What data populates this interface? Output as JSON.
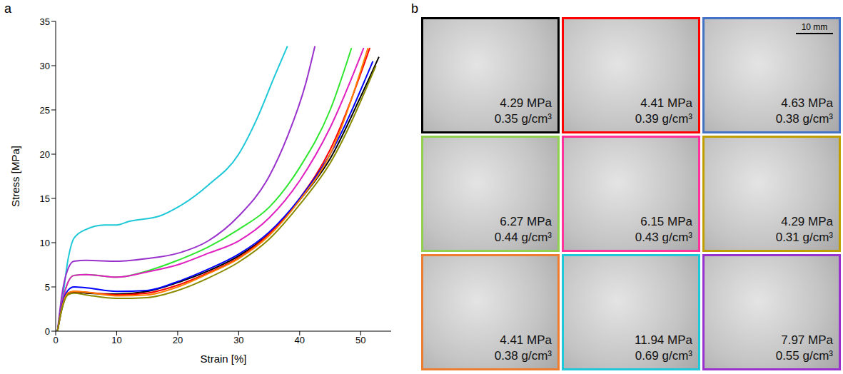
{
  "panel_labels": [
    "a",
    "b"
  ],
  "chart_data": {
    "type": "line",
    "x_label": "Strain [%]",
    "y_label": "Stress [MPa]",
    "xlim": [
      0,
      55
    ],
    "xticks": [
      0,
      10,
      20,
      30,
      40,
      50
    ],
    "ylim": [
      0,
      35
    ],
    "yticks": [
      0,
      5,
      10,
      15,
      20,
      25,
      30,
      35
    ],
    "grid": false,
    "series": [
      {
        "color": "#1fc8d8",
        "x": [
          0.3,
          1,
          2,
          3,
          5,
          8,
          10,
          12,
          17,
          20,
          25,
          30,
          33,
          36,
          38
        ],
        "values": [
          0,
          3,
          8,
          10.5,
          11.5,
          12,
          12,
          12.4,
          13,
          14,
          16.5,
          20,
          24,
          29,
          32.2
        ]
      },
      {
        "color": "#9932cc",
        "x": [
          0.3,
          1,
          2,
          3,
          5,
          10,
          15,
          20,
          25,
          30,
          35,
          38,
          41,
          42.5
        ],
        "values": [
          0,
          4,
          7,
          7.9,
          8,
          7.9,
          8.2,
          8.8,
          10.2,
          13,
          17.5,
          22,
          28,
          32.2
        ]
      },
      {
        "color": "#2ee62e",
        "x": [
          0.3,
          1,
          2,
          3,
          5,
          10,
          15,
          20,
          25,
          30,
          35,
          40,
          45,
          48.5
        ],
        "values": [
          0,
          3,
          5.5,
          6.3,
          6.4,
          6.1,
          6.8,
          8,
          9.5,
          11.5,
          14,
          18.5,
          25,
          32
        ]
      },
      {
        "color": "#e020c0",
        "x": [
          0.3,
          1,
          2,
          3,
          5,
          10,
          15,
          20,
          25,
          30,
          35,
          40,
          45,
          50.5
        ],
        "values": [
          0,
          3,
          5.5,
          6.3,
          6.4,
          6.1,
          6.7,
          7.5,
          8.8,
          10.2,
          12.8,
          17,
          23,
          32
        ]
      },
      {
        "color": "#000000",
        "x": [
          0.3,
          1,
          2,
          3,
          5,
          10,
          15,
          20,
          25,
          30,
          35,
          40,
          45,
          50,
          53
        ],
        "values": [
          0,
          2.5,
          4.2,
          4.4,
          4.3,
          4.2,
          4.5,
          5.5,
          6.8,
          8.5,
          11,
          14.8,
          19.5,
          26.5,
          31
        ]
      },
      {
        "color": "#ff0000",
        "x": [
          0.3,
          1,
          2,
          3,
          5,
          10,
          15,
          20,
          25,
          30,
          35,
          40,
          45,
          51.5
        ],
        "values": [
          0,
          2.6,
          4.3,
          4.5,
          4.4,
          4.1,
          4.3,
          5.2,
          6.6,
          8.3,
          11,
          15,
          20.5,
          32
        ]
      },
      {
        "color": "#0000ff",
        "x": [
          0.3,
          1,
          2,
          3,
          5,
          10,
          15,
          20,
          25,
          30,
          35,
          40,
          45,
          52
        ],
        "values": [
          0,
          2.8,
          4.6,
          5,
          4.9,
          4.5,
          4.6,
          5.6,
          7,
          8.7,
          11.2,
          15,
          20,
          30.5
        ]
      },
      {
        "color": "#ff7f00",
        "x": [
          0.3,
          1,
          2,
          3,
          5,
          10,
          15,
          20,
          25,
          30,
          35,
          40,
          45,
          51.2
        ],
        "values": [
          0,
          2.6,
          4.3,
          4.5,
          4.4,
          4,
          4.1,
          5,
          6.5,
          8.2,
          10.8,
          14.8,
          20,
          32
        ]
      },
      {
        "color": "#8b8b00",
        "x": [
          0.3,
          1,
          2,
          3,
          5,
          10,
          15,
          20,
          25,
          30,
          35,
          40,
          45,
          52.5
        ],
        "values": [
          0,
          2.4,
          4.1,
          4.3,
          4.1,
          3.7,
          3.8,
          4.6,
          6,
          7.8,
          10.4,
          14.3,
          19,
          30
        ]
      }
    ]
  },
  "panel_b": {
    "scale_bar": "10 mm",
    "tiles": [
      {
        "color": "#000000",
        "stress": "4.29 MPa",
        "density": "0.35 g/cm³"
      },
      {
        "color": "#ff0000",
        "stress": "4.41 MPa",
        "density": "0.39 g/cm³"
      },
      {
        "color": "#4472c4",
        "stress": "4.63 MPa",
        "density": "0.38 g/cm³"
      },
      {
        "color": "#92d050",
        "stress": "6.27 MPa",
        "density": "0.44 g/cm³"
      },
      {
        "color": "#ff3399",
        "stress": "6.15 MPa",
        "density": "0.43 g/cm³"
      },
      {
        "color": "#c0a000",
        "stress": "4.29 MPa",
        "density": "0.31 g/cm³"
      },
      {
        "color": "#ed7d31",
        "stress": "4.41 MPa",
        "density": "0.38 g/cm³"
      },
      {
        "color": "#1fc8d8",
        "stress": "11.94 MPa",
        "density": "0.69 g/cm³"
      },
      {
        "color": "#9932cc",
        "stress": "7.97 MPa",
        "density": "0.55 g/cm³"
      }
    ]
  }
}
